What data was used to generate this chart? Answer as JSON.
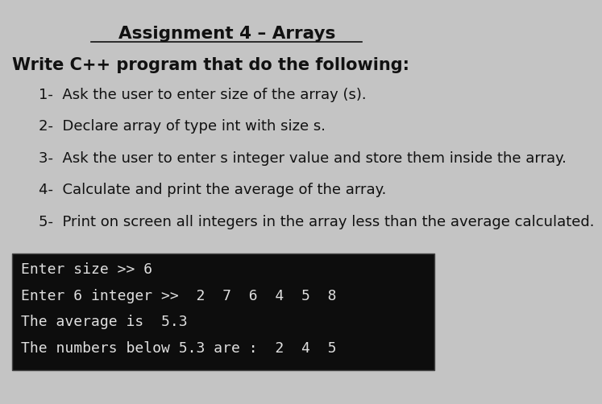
{
  "title": "Assignment 4 – Arrays",
  "bg_color": "#c4c4c4",
  "intro_line": "Write C++ program that do the following:",
  "steps": [
    "1-  Ask the user to enter size of the array (s).",
    "2-  Declare array of type int with size s.",
    "3-  Ask the user to enter s integer value and store them inside the array.",
    "4-  Calculate and print the average of the array.",
    "5-  Print on screen all integers in the array less than the average calculated."
  ],
  "terminal_bg": "#0d0d0d",
  "terminal_fg": "#e0e0e0",
  "terminal_lines": [
    "Enter size >> 6",
    "Enter 6 integer >>  2  7  6  4  5  8",
    "The average is  5.3",
    "The numbers below 5.3 are :  2  4  5"
  ],
  "terminal_fontsize": 13.0,
  "step_fontsize": 13.0,
  "intro_fontsize": 15.0,
  "title_fontsize": 15.5
}
